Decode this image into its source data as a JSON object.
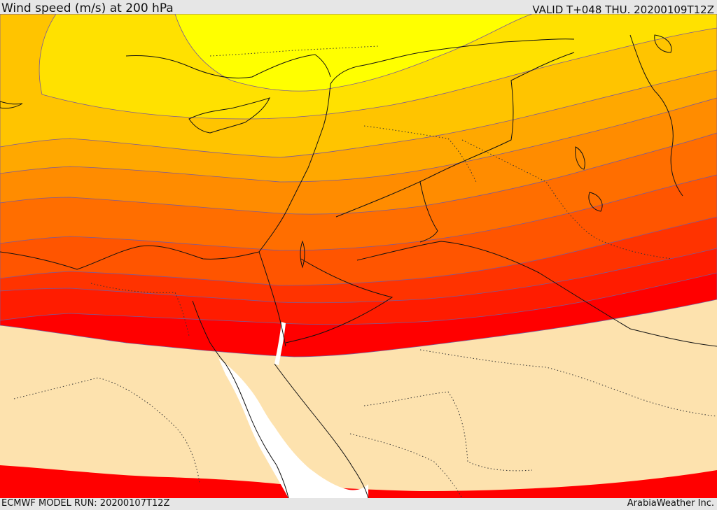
{
  "header": {
    "title": "Wind speed (m/s) at 200 hPa",
    "valid_time": "VALID T+048 THU. 20200109T12Z"
  },
  "footer": {
    "model_run": "ECMWF MODEL RUN: 20200107T12Z",
    "credit": "ArabiaWeather Inc."
  },
  "map": {
    "variable": "wind speed",
    "level": "200 hPa",
    "bands": [
      {
        "name": "band-1",
        "color": "#ffff00"
      },
      {
        "name": "band-2",
        "color": "#ffe100"
      },
      {
        "name": "band-3",
        "color": "#ffc400"
      },
      {
        "name": "band-4",
        "color": "#ffa800"
      },
      {
        "name": "band-5",
        "color": "#ff8c00"
      },
      {
        "name": "band-6",
        "color": "#ff6e00"
      },
      {
        "name": "band-7",
        "color": "#ff5500"
      },
      {
        "name": "band-8",
        "color": "#ff3300"
      },
      {
        "name": "band-9",
        "color": "#ff1c00"
      },
      {
        "name": "band-10",
        "color": "#ff0000"
      }
    ],
    "below_threshold_color": "#fde2ae",
    "water_color": "#ffffff"
  }
}
